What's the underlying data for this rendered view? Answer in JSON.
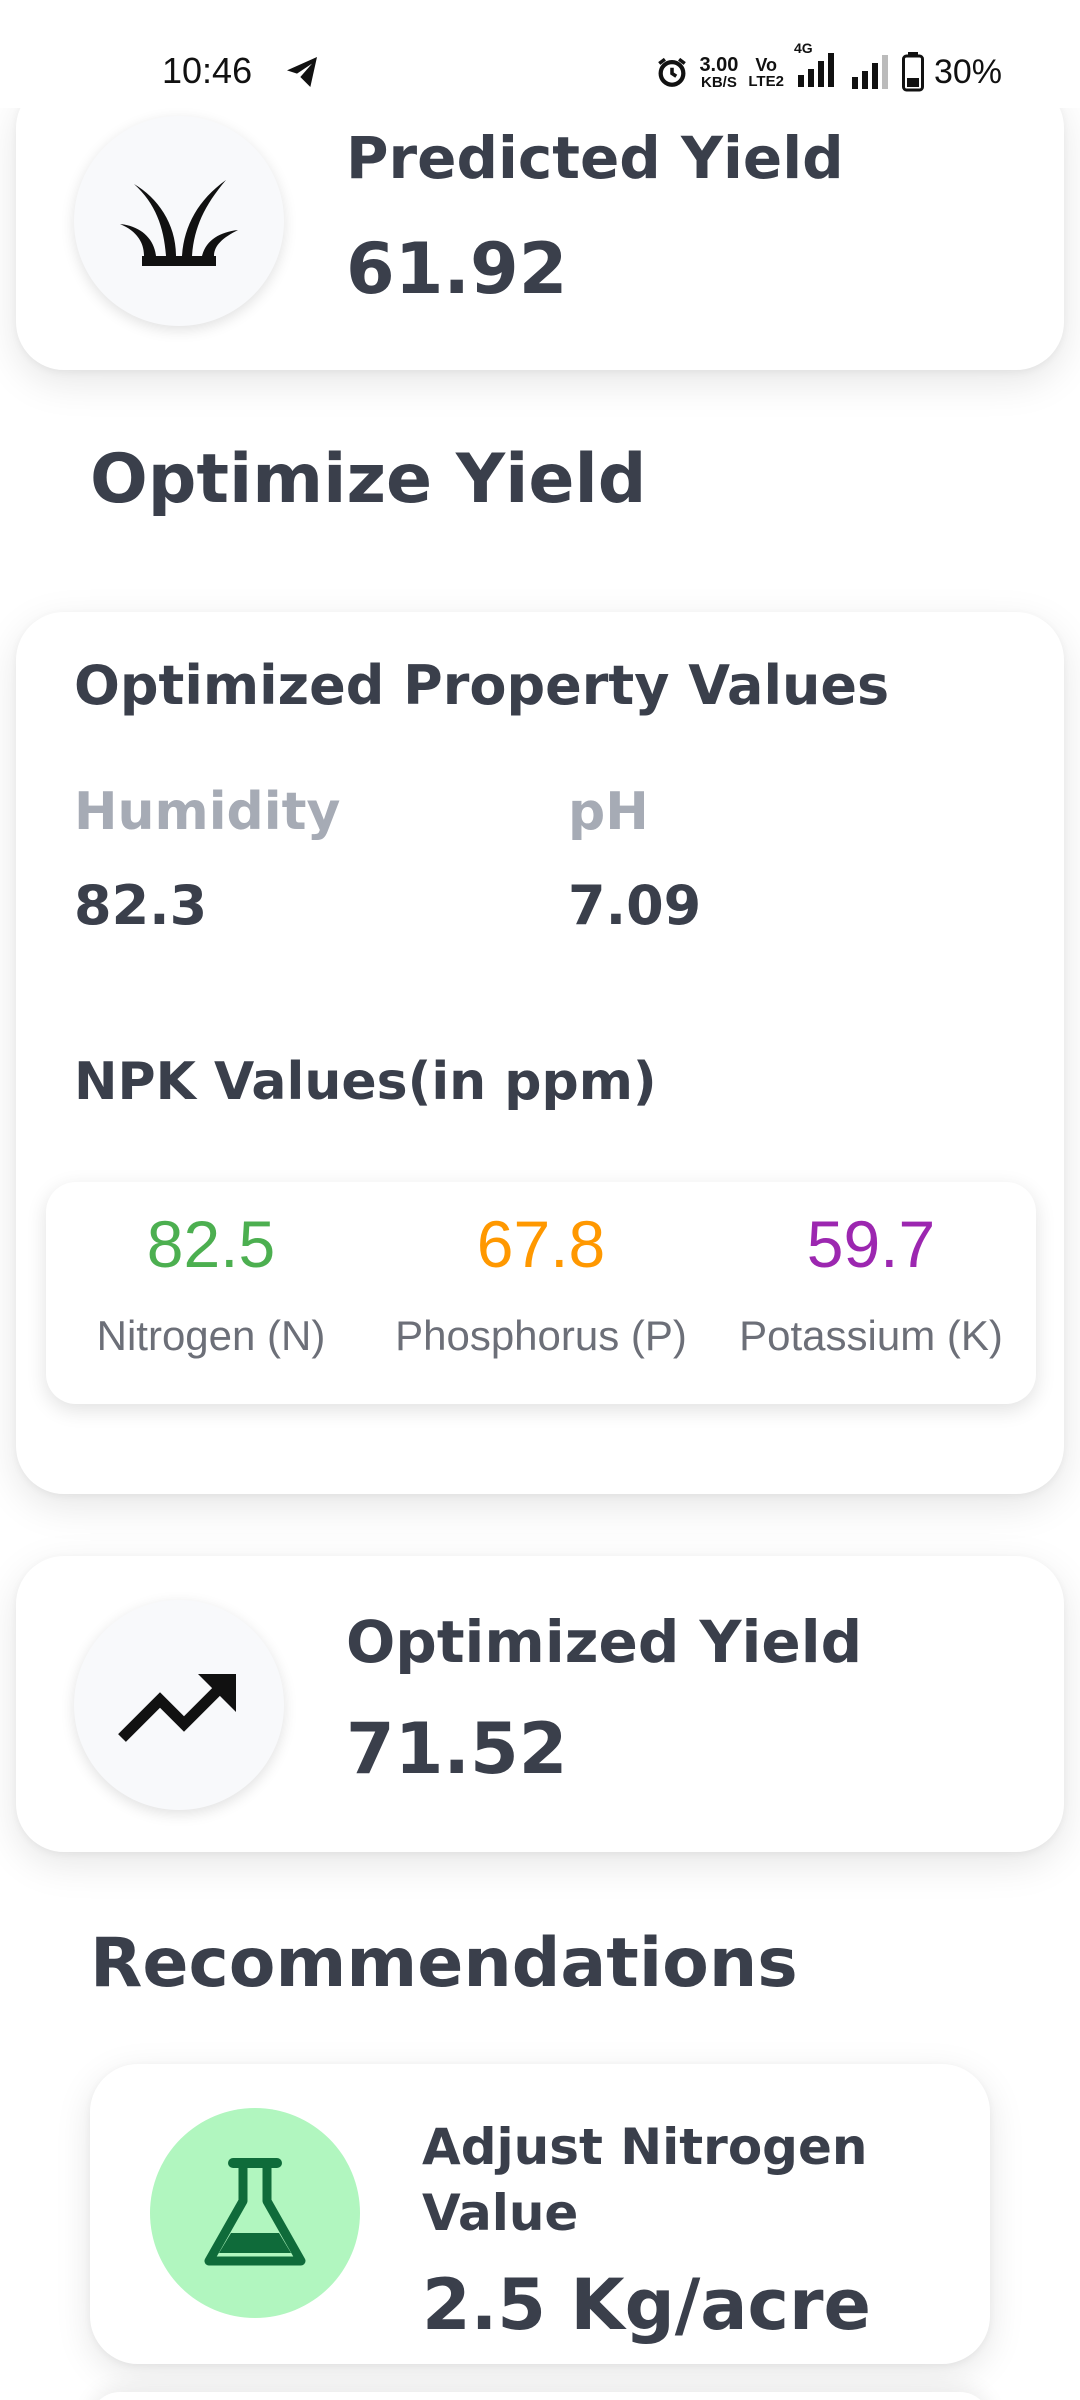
{
  "status_bar": {
    "time": "10:46",
    "speed_top": "3.00",
    "speed_bottom": "KB/S",
    "volte_top": "Vo",
    "volte_bottom": "LTE2",
    "network": "4G",
    "battery": "30%"
  },
  "predicted_yield": {
    "title": "Predicted Yield",
    "value": "61.92",
    "icon": "sprout-icon"
  },
  "optimize_section": {
    "heading": "Optimize Yield",
    "card_title": "Optimized Property Values",
    "humidity_label": "Humidity",
    "humidity_value": "82.3",
    "ph_label": "pH",
    "ph_value": "7.09",
    "npk_heading": "NPK Values(in ppm)",
    "npk": [
      {
        "value": "82.5",
        "label": "Nitrogen (N)",
        "color": "#4caf50"
      },
      {
        "value": "67.8",
        "label": "Phosphorus (P)",
        "color": "#ff9800"
      },
      {
        "value": "59.7",
        "label": "Potassium (K)",
        "color": "#9c27b0"
      }
    ]
  },
  "optimized_yield": {
    "title": "Optimized Yield",
    "value": "71.52",
    "icon": "trending-up-icon"
  },
  "recommendations": {
    "heading": "Recommendations",
    "items": [
      {
        "title": "Adjust Nitrogen Value",
        "value": "2.5 Kg/acre",
        "icon": "flask-icon",
        "icon_bg": "#b1f6bf"
      }
    ]
  }
}
